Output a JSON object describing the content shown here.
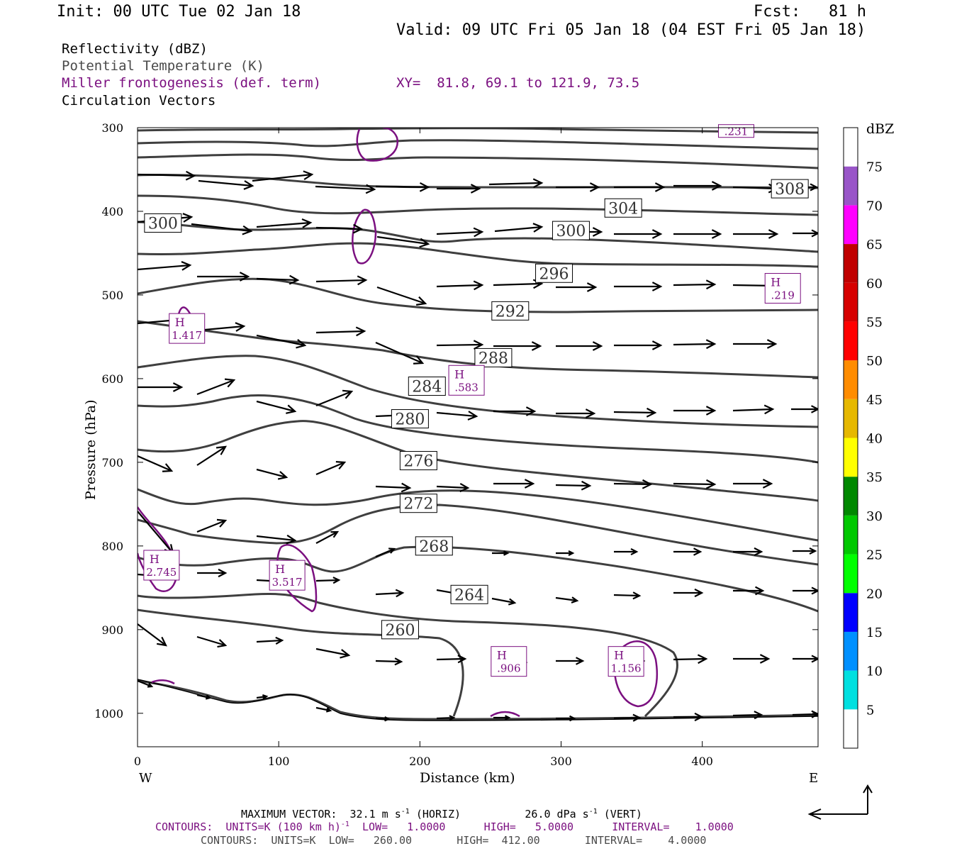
{
  "header": {
    "init": "Init: 00 UTC Tue 02 Jan 18",
    "fcst": "Fcst:   81 h",
    "valid": "Valid: 09 UTC Fri 05 Jan 18 (04 EST Fri 05 Jan 18)",
    "field1": "Reflectivity (dBZ)",
    "field2": "Potential Temperature (K)",
    "field3": "Miller frontogenesis (def. term)",
    "xy": "XY=  81.8, 69.1 to 121.9, 73.5",
    "field4": "Circulation Vectors"
  },
  "footer": {
    "maxvec": "MAXIMUM VECTOR:  32.1 m s",
    "maxvec_unit1": "-1",
    "maxvec_mid": " (HORIZ)          26.0 dPa s",
    "maxvec_unit2": "-1",
    "maxvec_end": " (VERT)",
    "contours1_a": "CONTOURS:  UNITS=K (100 km h)",
    "contours1_sup": "-1",
    "contours1_b": "  LOW=   1.0000      HIGH=   5.0000      INTERVAL=    1.0000",
    "contours2": "CONTOURS:  UNITS=K  LOW=   260.00       HIGH=  412.00       INTERVAL=    4.0000"
  },
  "colors": {
    "theta": "#3f3f3f",
    "fronto": "#7b1080",
    "vector": "#000000"
  },
  "colorbar": {
    "title": "dBZ",
    "labels": [
      "5",
      "10",
      "15",
      "20",
      "25",
      "30",
      "35",
      "40",
      "45",
      "50",
      "55",
      "60",
      "65",
      "70",
      "75"
    ],
    "colors": [
      "#ffffff",
      "#00e0e0",
      "#0090ff",
      "#0000ff",
      "#00ff00",
      "#00c800",
      "#008800",
      "#ffff00",
      "#e6b800",
      "#ff8c00",
      "#ff0000",
      "#d60000",
      "#c00000",
      "#ff00ff",
      "#9955c8",
      "#ffffff"
    ]
  },
  "chart_data": {
    "type": "cross-section",
    "ylabel": "Pressure (hPa)",
    "xlabel": "Distance (km)",
    "x_left_label": "W",
    "x_right_label": "E",
    "xlim": [
      0,
      482
    ],
    "ylim": [
      1040,
      300
    ],
    "xticks": [
      0,
      100,
      200,
      300,
      400
    ],
    "yticks": [
      300,
      400,
      500,
      600,
      700,
      800,
      900,
      1000
    ],
    "theta_contours": [
      {
        "value": 260,
        "label": "260",
        "label_x": 186,
        "label_p": 900
      },
      {
        "value": 264,
        "label": "264",
        "label_x": 235,
        "label_p": 858
      },
      {
        "value": 268,
        "label": "268",
        "label_x": 210,
        "label_p": 800
      },
      {
        "value": 272,
        "label": "272",
        "label_x": 199,
        "label_p": 749
      },
      {
        "value": 276,
        "label": "276",
        "label_x": 199,
        "label_p": 698
      },
      {
        "value": 280,
        "label": "280",
        "label_x": 193,
        "label_p": 648
      },
      {
        "value": 284,
        "label": "284",
        "label_x": 205,
        "label_p": 609
      },
      {
        "value": 288,
        "label": "288",
        "label_x": 252,
        "label_p": 575
      },
      {
        "value": 292,
        "label": "292",
        "label_x": 264,
        "label_p": 519
      },
      {
        "value": 296,
        "label": "296",
        "label_x": 295,
        "label_p": 474
      },
      {
        "value": 300,
        "label": "300",
        "label_x": 18,
        "label_p": 414
      },
      {
        "value": 300,
        "label": "300",
        "label_x": 307,
        "label_p": 423
      },
      {
        "value": 304,
        "label": "304",
        "label_x": 344,
        "label_p": 396
      },
      {
        "value": 308,
        "label": "308",
        "label_x": 462,
        "label_p": 373
      }
    ],
    "frontogenesis_maxima": [
      {
        "label": "H",
        "value": "1.417",
        "x": 35,
        "p": 540
      },
      {
        "label": "H",
        "value": ".583",
        "x": 233,
        "p": 602
      },
      {
        "label": "H",
        "value": ".219",
        "x": 457,
        "p": 492
      },
      {
        "label": "H",
        "value": "2.745",
        "x": 17,
        "p": 823
      },
      {
        "label": "H",
        "value": "3.517",
        "x": 106,
        "p": 835
      },
      {
        "label": "H",
        "value": ".906",
        "x": 263,
        "p": 938
      },
      {
        "label": "H",
        "value": "1.156",
        "x": 346,
        "p": 938
      },
      {
        "label": "",
        "value": ".231",
        "x": 424,
        "p": 304
      }
    ]
  }
}
